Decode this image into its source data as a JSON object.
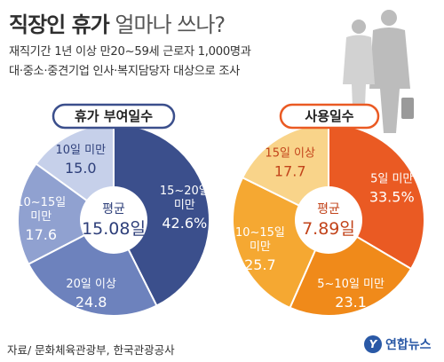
{
  "header": {
    "title_bold": "직장인 휴가",
    "title_rest": "얼마나 쓰나?",
    "subtitle_line1": "재직기간 1년 이상 만20~59세 근로자 1,000명과",
    "subtitle_line2": "대·중소·중견기업 인사·복지담당자 대상으로 조사"
  },
  "footer": {
    "source": "자료/ 문화체육관광부, 한국관광공사",
    "logo_mark": "Y",
    "logo_text": "연합뉴스"
  },
  "chart_data": [
    {
      "type": "pie",
      "title": "휴가 부여일수",
      "center_label": "평균",
      "center_value": "15.08",
      "center_unit": "일",
      "slices": [
        {
          "label_lines": [
            "15~20일",
            "미만"
          ],
          "value": 42.6,
          "color": "#3b4f8c"
        },
        {
          "label_lines": [
            "20일 이상"
          ],
          "value": 24.8,
          "color": "#6d82bd"
        },
        {
          "label_lines": [
            "10~15일",
            "미만"
          ],
          "value": 17.6,
          "color": "#90a1d0"
        },
        {
          "label_lines": [
            "10일 미만"
          ],
          "value": 15.0,
          "color": "#c6d0ea"
        }
      ]
    },
    {
      "type": "pie",
      "title": "사용일수",
      "center_label": "평균",
      "center_value": "7.89",
      "center_unit": "일",
      "slices": [
        {
          "label_lines": [
            "5일 미만"
          ],
          "value": 33.5,
          "color": "#ea5a23"
        },
        {
          "label_lines": [
            "5~10일 미만"
          ],
          "value": 23.1,
          "color": "#f08a1a"
        },
        {
          "label_lines": [
            "10~15일",
            "미만"
          ],
          "value": 25.7,
          "color": "#f5a832"
        },
        {
          "label_lines": [
            "15일 이상"
          ],
          "value": 17.7,
          "color": "#f9d48a"
        }
      ]
    }
  ],
  "colors": {
    "left_badge_border": "#3b4f8c",
    "right_badge_border": "#ea5a23",
    "center_value_left": "#2e3f7a",
    "center_value_right": "#c2431a"
  }
}
